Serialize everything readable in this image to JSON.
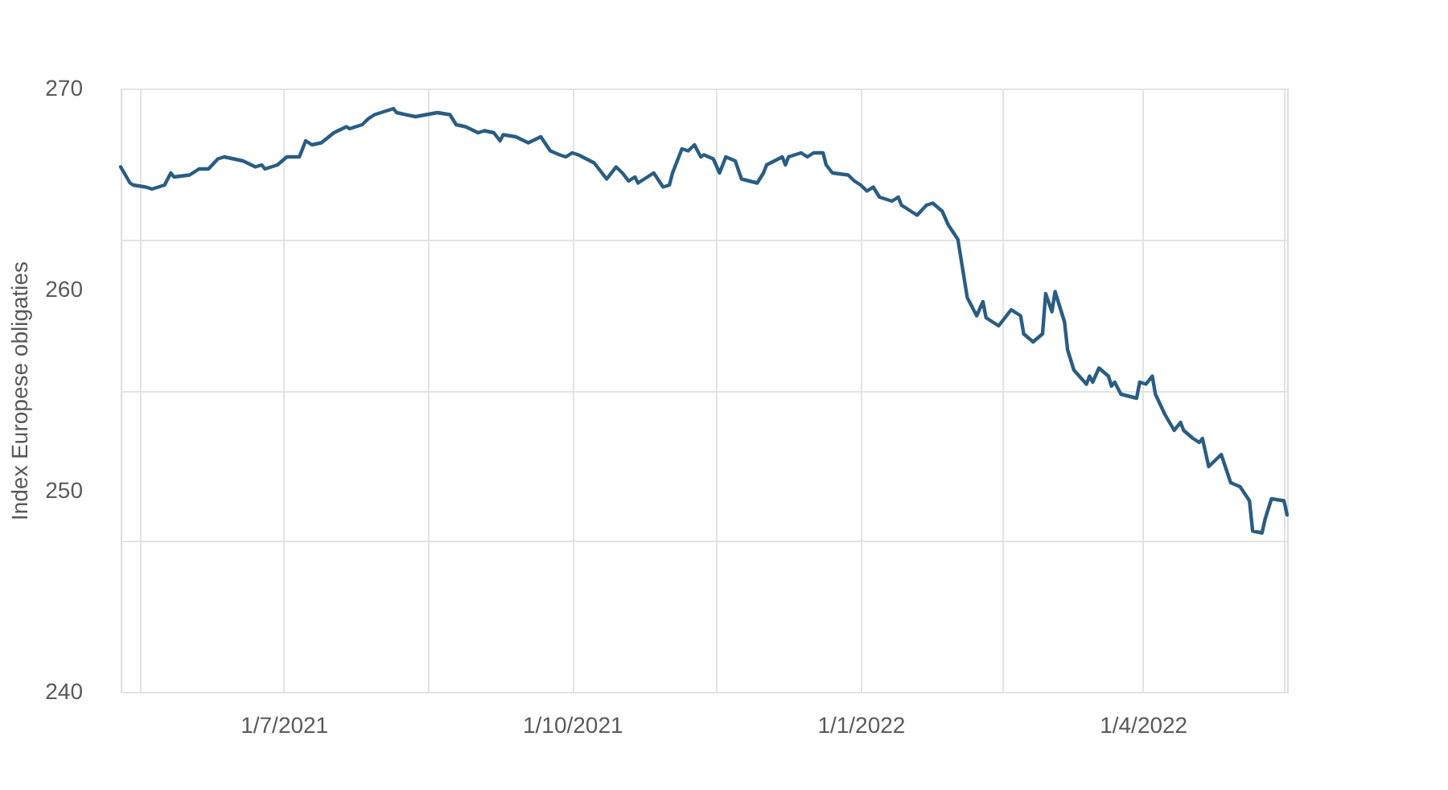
{
  "chart_data": {
    "type": "line",
    "ylabel": "Index Europese obligaties",
    "xlim": [
      "2021-05-10",
      "2022-05-17"
    ],
    "ylim": [
      240,
      270
    ],
    "xticks": [
      {
        "value": "2021-05-16",
        "label": null
      },
      {
        "value": "2021-07-01",
        "label": "1/7/2021"
      },
      {
        "value": "2021-08-16",
        "label": null
      },
      {
        "value": "2021-10-01",
        "label": "1/10/2021"
      },
      {
        "value": "2021-11-16",
        "label": null
      },
      {
        "value": "2022-01-01",
        "label": "1/1/2022"
      },
      {
        "value": "2022-02-15",
        "label": null
      },
      {
        "value": "2022-04-01",
        "label": "1/4/2022"
      },
      {
        "value": "2022-05-16",
        "label": null
      }
    ],
    "yticks": [
      240,
      {
        "value": 247.5,
        "label": null
      },
      250,
      {
        "value": 255,
        "label": null
      },
      260,
      {
        "value": 262.5,
        "label": null
      },
      270
    ],
    "grid": true,
    "line_style": "solid",
    "marker": "none",
    "x": [
      "2021-05-10",
      "2021-05-13",
      "2021-05-14",
      "2021-05-18",
      "2021-05-20",
      "2021-05-22",
      "2021-05-24",
      "2021-05-26",
      "2021-05-27",
      "2021-06-01",
      "2021-06-03",
      "2021-06-04",
      "2021-06-07",
      "2021-06-10",
      "2021-06-12",
      "2021-06-15",
      "2021-06-18",
      "2021-06-22",
      "2021-06-24",
      "2021-06-25",
      "2021-06-29",
      "2021-07-02",
      "2021-07-06",
      "2021-07-08",
      "2021-07-10",
      "2021-07-13",
      "2021-07-17",
      "2021-07-21",
      "2021-07-22",
      "2021-07-26",
      "2021-07-28",
      "2021-07-30",
      "2021-08-05",
      "2021-08-06",
      "2021-08-12",
      "2021-08-19",
      "2021-08-23",
      "2021-08-25",
      "2021-08-28",
      "2021-09-01",
      "2021-09-03",
      "2021-09-06",
      "2021-09-08",
      "2021-09-09",
      "2021-09-13",
      "2021-09-17",
      "2021-09-21",
      "2021-09-24",
      "2021-09-27",
      "2021-09-29",
      "2021-10-01",
      "2021-10-03",
      "2021-10-08",
      "2021-10-12",
      "2021-10-15",
      "2021-10-17",
      "2021-10-19",
      "2021-10-21",
      "2021-10-22",
      "2021-10-27",
      "2021-10-30",
      "2021-11-01",
      "2021-11-02",
      "2021-11-05",
      "2021-11-07",
      "2021-11-09",
      "2021-11-11",
      "2021-11-12",
      "2021-11-15",
      "2021-11-17",
      "2021-11-19",
      "2021-11-22",
      "2021-11-24",
      "2021-11-29",
      "2021-12-01",
      "2021-12-02",
      "2021-12-07",
      "2021-12-08",
      "2021-12-09",
      "2021-12-13",
      "2021-12-15",
      "2021-12-17",
      "2021-12-20",
      "2021-12-21",
      "2021-12-23",
      "2021-12-28",
      "2021-12-30",
      "2022-01-01",
      "2022-01-03",
      "2022-01-05",
      "2022-01-07",
      "2022-01-11",
      "2022-01-13",
      "2022-01-14",
      "2022-01-19",
      "2022-01-22",
      "2022-01-24",
      "2022-01-27",
      "2022-01-29",
      "2022-02-01",
      "2022-02-04",
      "2022-02-07",
      "2022-02-09",
      "2022-02-10",
      "2022-02-14",
      "2022-02-18",
      "2022-02-21",
      "2022-02-22",
      "2022-02-25",
      "2022-02-28",
      "2022-03-01",
      "2022-03-03",
      "2022-03-04",
      "2022-03-07",
      "2022-03-08",
      "2022-03-10",
      "2022-03-14",
      "2022-03-15",
      "2022-03-16",
      "2022-03-18",
      "2022-03-21",
      "2022-03-22",
      "2022-03-23",
      "2022-03-25",
      "2022-03-30",
      "2022-03-31",
      "2022-04-02",
      "2022-04-04",
      "2022-04-05",
      "2022-04-08",
      "2022-04-11",
      "2022-04-13",
      "2022-04-14",
      "2022-04-17",
      "2022-04-19",
      "2022-04-20",
      "2022-04-22",
      "2022-04-26",
      "2022-04-29",
      "2022-05-02",
      "2022-05-05",
      "2022-05-06",
      "2022-05-09",
      "2022-05-10",
      "2022-05-12",
      "2022-05-16",
      "2022-05-17"
    ],
    "series": [
      {
        "color": "#2a5d82",
        "values": [
          266.1,
          265.3,
          265.2,
          265.1,
          265.0,
          265.1,
          265.2,
          265.8,
          265.6,
          265.7,
          265.9,
          266.0,
          266.0,
          266.5,
          266.6,
          266.5,
          266.4,
          266.1,
          266.2,
          266.0,
          266.2,
          266.6,
          266.6,
          267.4,
          267.2,
          267.3,
          267.8,
          268.1,
          268.0,
          268.2,
          268.5,
          268.7,
          269.0,
          268.8,
          268.6,
          268.8,
          268.7,
          268.2,
          268.1,
          267.8,
          267.9,
          267.8,
          267.4,
          267.7,
          267.6,
          267.3,
          267.6,
          266.9,
          266.7,
          266.6,
          266.8,
          266.7,
          266.3,
          265.5,
          266.1,
          265.8,
          265.4,
          265.6,
          265.3,
          265.8,
          265.1,
          265.2,
          265.8,
          267.0,
          266.9,
          267.2,
          266.6,
          266.7,
          266.5,
          265.8,
          266.6,
          266.4,
          265.5,
          265.3,
          265.8,
          266.2,
          266.6,
          266.2,
          266.6,
          266.8,
          266.6,
          266.8,
          266.8,
          266.2,
          265.8,
          265.7,
          265.4,
          265.2,
          264.9,
          265.1,
          264.6,
          264.4,
          264.6,
          264.2,
          263.7,
          264.2,
          264.3,
          263.9,
          263.2,
          262.5,
          259.6,
          258.7,
          259.4,
          258.6,
          258.2,
          259.0,
          258.7,
          257.8,
          257.4,
          257.8,
          259.8,
          258.9,
          259.9,
          258.4,
          257.0,
          256.0,
          255.3,
          255.7,
          255.4,
          256.1,
          255.7,
          255.2,
          255.4,
          254.8,
          254.6,
          255.4,
          255.3,
          255.7,
          254.8,
          253.8,
          253.0,
          253.4,
          253.0,
          252.6,
          252.4,
          252.6,
          251.2,
          251.8,
          250.4,
          250.2,
          249.5,
          248.0,
          247.9,
          248.6,
          249.6,
          249.5,
          248.8
        ]
      }
    ]
  }
}
